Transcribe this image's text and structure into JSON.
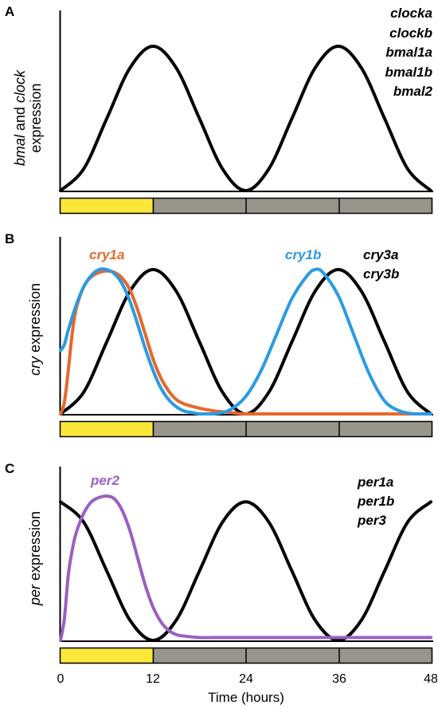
{
  "colors": {
    "light": "#fbe73a",
    "dark": "#97958c",
    "black": "#000000",
    "orange": "#e6682a",
    "blue": "#2a9be3",
    "purple": "#9b5fc0"
  },
  "x_axis": {
    "label": "Time (hours)",
    "ticks": [
      "0",
      "12",
      "24",
      "36",
      "48"
    ]
  },
  "chart_data": [
    {
      "type": "line",
      "panel": "A",
      "ylabel_italic": "bmal",
      "ylabel_mid": " and ",
      "ylabel_italic2": "clock",
      "ylabel_line2": "expression",
      "xlim": [
        0,
        48
      ],
      "ylim": [
        0,
        1
      ],
      "light_dark_bar": {
        "light": [
          0,
          12
        ],
        "dark": [
          12,
          48
        ],
        "dividers": [
          24,
          36
        ]
      },
      "series": [
        {
          "name": "",
          "color": "black",
          "x": [
            0,
            3,
            6,
            9,
            12,
            15,
            18,
            21,
            24,
            27,
            30,
            33,
            36,
            39,
            42,
            45,
            48
          ],
          "y": [
            0.0,
            0.15,
            0.5,
            0.85,
            1.0,
            0.85,
            0.5,
            0.15,
            0.0,
            0.15,
            0.5,
            0.85,
            1.0,
            0.85,
            0.5,
            0.15,
            0.0
          ]
        }
      ],
      "gene_labels": [
        {
          "text": "clocka",
          "color": "black"
        },
        {
          "text": "clockb",
          "color": "black"
        },
        {
          "text": "bmal1a",
          "color": "black"
        },
        {
          "text": "bmal1b",
          "color": "black"
        },
        {
          "text": "bmal2",
          "color": "black"
        }
      ]
    },
    {
      "type": "line",
      "panel": "B",
      "ylabel_italic": "cry",
      "ylabel_rest": " expression",
      "xlim": [
        0,
        48
      ],
      "ylim": [
        0,
        1
      ],
      "light_dark_bar": {
        "light": [
          0,
          12
        ],
        "dark": [
          12,
          48
        ],
        "dividers": [
          24,
          36
        ]
      },
      "series": [
        {
          "name": "",
          "color": "black",
          "x": [
            0,
            3,
            6,
            9,
            12,
            15,
            18,
            21,
            24,
            27,
            30,
            33,
            36,
            39,
            42,
            45,
            48
          ],
          "y": [
            0.0,
            0.15,
            0.5,
            0.85,
            1.0,
            0.85,
            0.5,
            0.15,
            0.0,
            0.15,
            0.5,
            0.85,
            1.0,
            0.85,
            0.5,
            0.15,
            0.0
          ]
        },
        {
          "name": "cry1a",
          "color": "orange",
          "x": [
            0,
            0.5,
            1,
            1.5,
            2,
            3,
            4,
            5,
            6,
            7,
            8,
            9,
            10,
            11,
            12,
            13,
            14,
            15,
            16,
            18,
            20,
            22,
            24,
            30,
            36,
            42,
            48
          ],
          "y": [
            0.0,
            0.08,
            0.3,
            0.55,
            0.72,
            0.88,
            0.95,
            0.98,
            0.99,
            0.98,
            0.94,
            0.86,
            0.72,
            0.55,
            0.38,
            0.25,
            0.16,
            0.1,
            0.07,
            0.04,
            0.02,
            0.01,
            0.0,
            0.0,
            0.0,
            0.0,
            0.0
          ]
        },
        {
          "name": "cry1b",
          "color": "blue",
          "x": [
            0,
            0.5,
            1,
            2,
            3,
            4,
            5,
            6,
            7,
            8,
            9,
            10,
            11,
            12,
            13,
            14,
            15,
            16,
            17,
            18,
            20,
            22,
            24,
            26,
            28,
            30,
            32,
            33,
            34,
            36,
            38,
            40,
            42,
            44,
            46,
            48
          ],
          "y": [
            0.44,
            0.48,
            0.58,
            0.75,
            0.88,
            0.96,
            1.0,
            1.0,
            0.97,
            0.9,
            0.78,
            0.62,
            0.45,
            0.3,
            0.18,
            0.1,
            0.05,
            0.02,
            0.01,
            0.0,
            0.0,
            0.03,
            0.12,
            0.3,
            0.55,
            0.8,
            0.96,
            1.0,
            0.98,
            0.82,
            0.55,
            0.28,
            0.09,
            0.02,
            0.0,
            0.0
          ]
        }
      ],
      "gene_labels": [
        {
          "text": "cry1a",
          "color": "orange"
        },
        {
          "text": "cry1b",
          "color": "blue"
        },
        {
          "text": "cry3a",
          "color": "black"
        },
        {
          "text": "cry3b",
          "color": "black"
        }
      ]
    },
    {
      "type": "line",
      "panel": "C",
      "ylabel_italic": "per",
      "ylabel_rest": " expression",
      "xlim": [
        0,
        48
      ],
      "ylim": [
        0,
        1
      ],
      "light_dark_bar": {
        "light": [
          0,
          12
        ],
        "dark": [
          12,
          48
        ],
        "dividers": [
          24,
          36
        ]
      },
      "series": [
        {
          "name": "",
          "color": "black",
          "x": [
            0,
            3,
            6,
            9,
            12,
            15,
            18,
            21,
            24,
            27,
            30,
            33,
            36,
            39,
            42,
            45,
            48
          ],
          "y": [
            0.96,
            0.82,
            0.48,
            0.14,
            0.0,
            0.14,
            0.48,
            0.82,
            0.96,
            0.82,
            0.48,
            0.14,
            0.0,
            0.14,
            0.48,
            0.82,
            0.96
          ]
        },
        {
          "name": "per2",
          "color": "purple",
          "x": [
            0,
            0.5,
            1,
            1.5,
            2,
            3,
            4,
            5,
            6,
            7,
            8,
            9,
            10,
            11,
            12,
            13,
            14,
            15,
            16,
            18,
            20,
            24,
            30,
            36,
            42,
            48
          ],
          "y": [
            0.0,
            0.15,
            0.45,
            0.62,
            0.74,
            0.88,
            0.96,
            0.99,
            1.0,
            0.98,
            0.9,
            0.76,
            0.57,
            0.38,
            0.23,
            0.13,
            0.07,
            0.04,
            0.03,
            0.02,
            0.02,
            0.02,
            0.02,
            0.02,
            0.02,
            0.02
          ]
        }
      ],
      "gene_labels": [
        {
          "text": "per2",
          "color": "purple"
        },
        {
          "text": "per1a",
          "color": "black"
        },
        {
          "text": "per1b",
          "color": "black"
        },
        {
          "text": "per3",
          "color": "black"
        }
      ]
    }
  ]
}
